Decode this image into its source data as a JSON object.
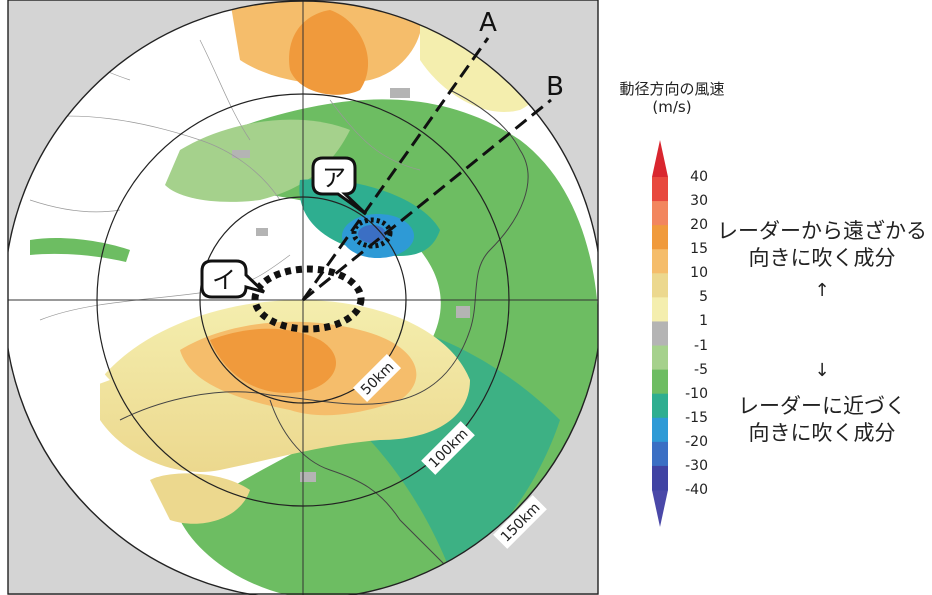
{
  "map": {
    "rays": [
      {
        "label": "A",
        "end_label": "A"
      },
      {
        "label": "B",
        "end_label": "B"
      }
    ],
    "callouts": [
      {
        "label": "ア"
      },
      {
        "label": "イ"
      }
    ],
    "range_rings": [
      "50km",
      "100km",
      "150km"
    ]
  },
  "legend": {
    "title": "動径方向の風速",
    "unit": "(m/s)",
    "ticks": [
      "40",
      "30",
      "20",
      "15",
      "10",
      "5",
      "1",
      "-1",
      "-5",
      "-10",
      "-15",
      "-20",
      "-30",
      "-40"
    ],
    "bins": [
      {
        "range": "30–40",
        "color": "#e8483e"
      },
      {
        "range": "20–30",
        "color": "#f2865e"
      },
      {
        "range": "15–20",
        "color": "#f09a3c"
      },
      {
        "range": "10–15",
        "color": "#f5bd6b"
      },
      {
        "range": "5–10",
        "color": "#ecd88e"
      },
      {
        "range": "1–5",
        "color": "#f4eeae"
      },
      {
        "range": "-1–1",
        "color": "#b4b4b4"
      },
      {
        "range": "-5–-1",
        "color": "#a5d18c"
      },
      {
        "range": "-10–-5",
        "color": "#6dbd62"
      },
      {
        "range": "-15–-10",
        "color": "#2eae90"
      },
      {
        "range": "-20–-15",
        "color": "#2e9ad6"
      },
      {
        "range": "-30–-20",
        "color": "#3b6fc4"
      },
      {
        "range": "-40–-30",
        "color": "#4043a3"
      }
    ],
    "top_cap_color": "#d9262f",
    "bottom_cap_color": "#4a48a8",
    "away_text": [
      "レーダーから遠ざかる",
      "向きに吹く成分"
    ],
    "away_arrow": "↑",
    "toward_arrow": "↓",
    "toward_text": [
      "レーダーに近づく",
      "向きに吹く成分"
    ]
  }
}
